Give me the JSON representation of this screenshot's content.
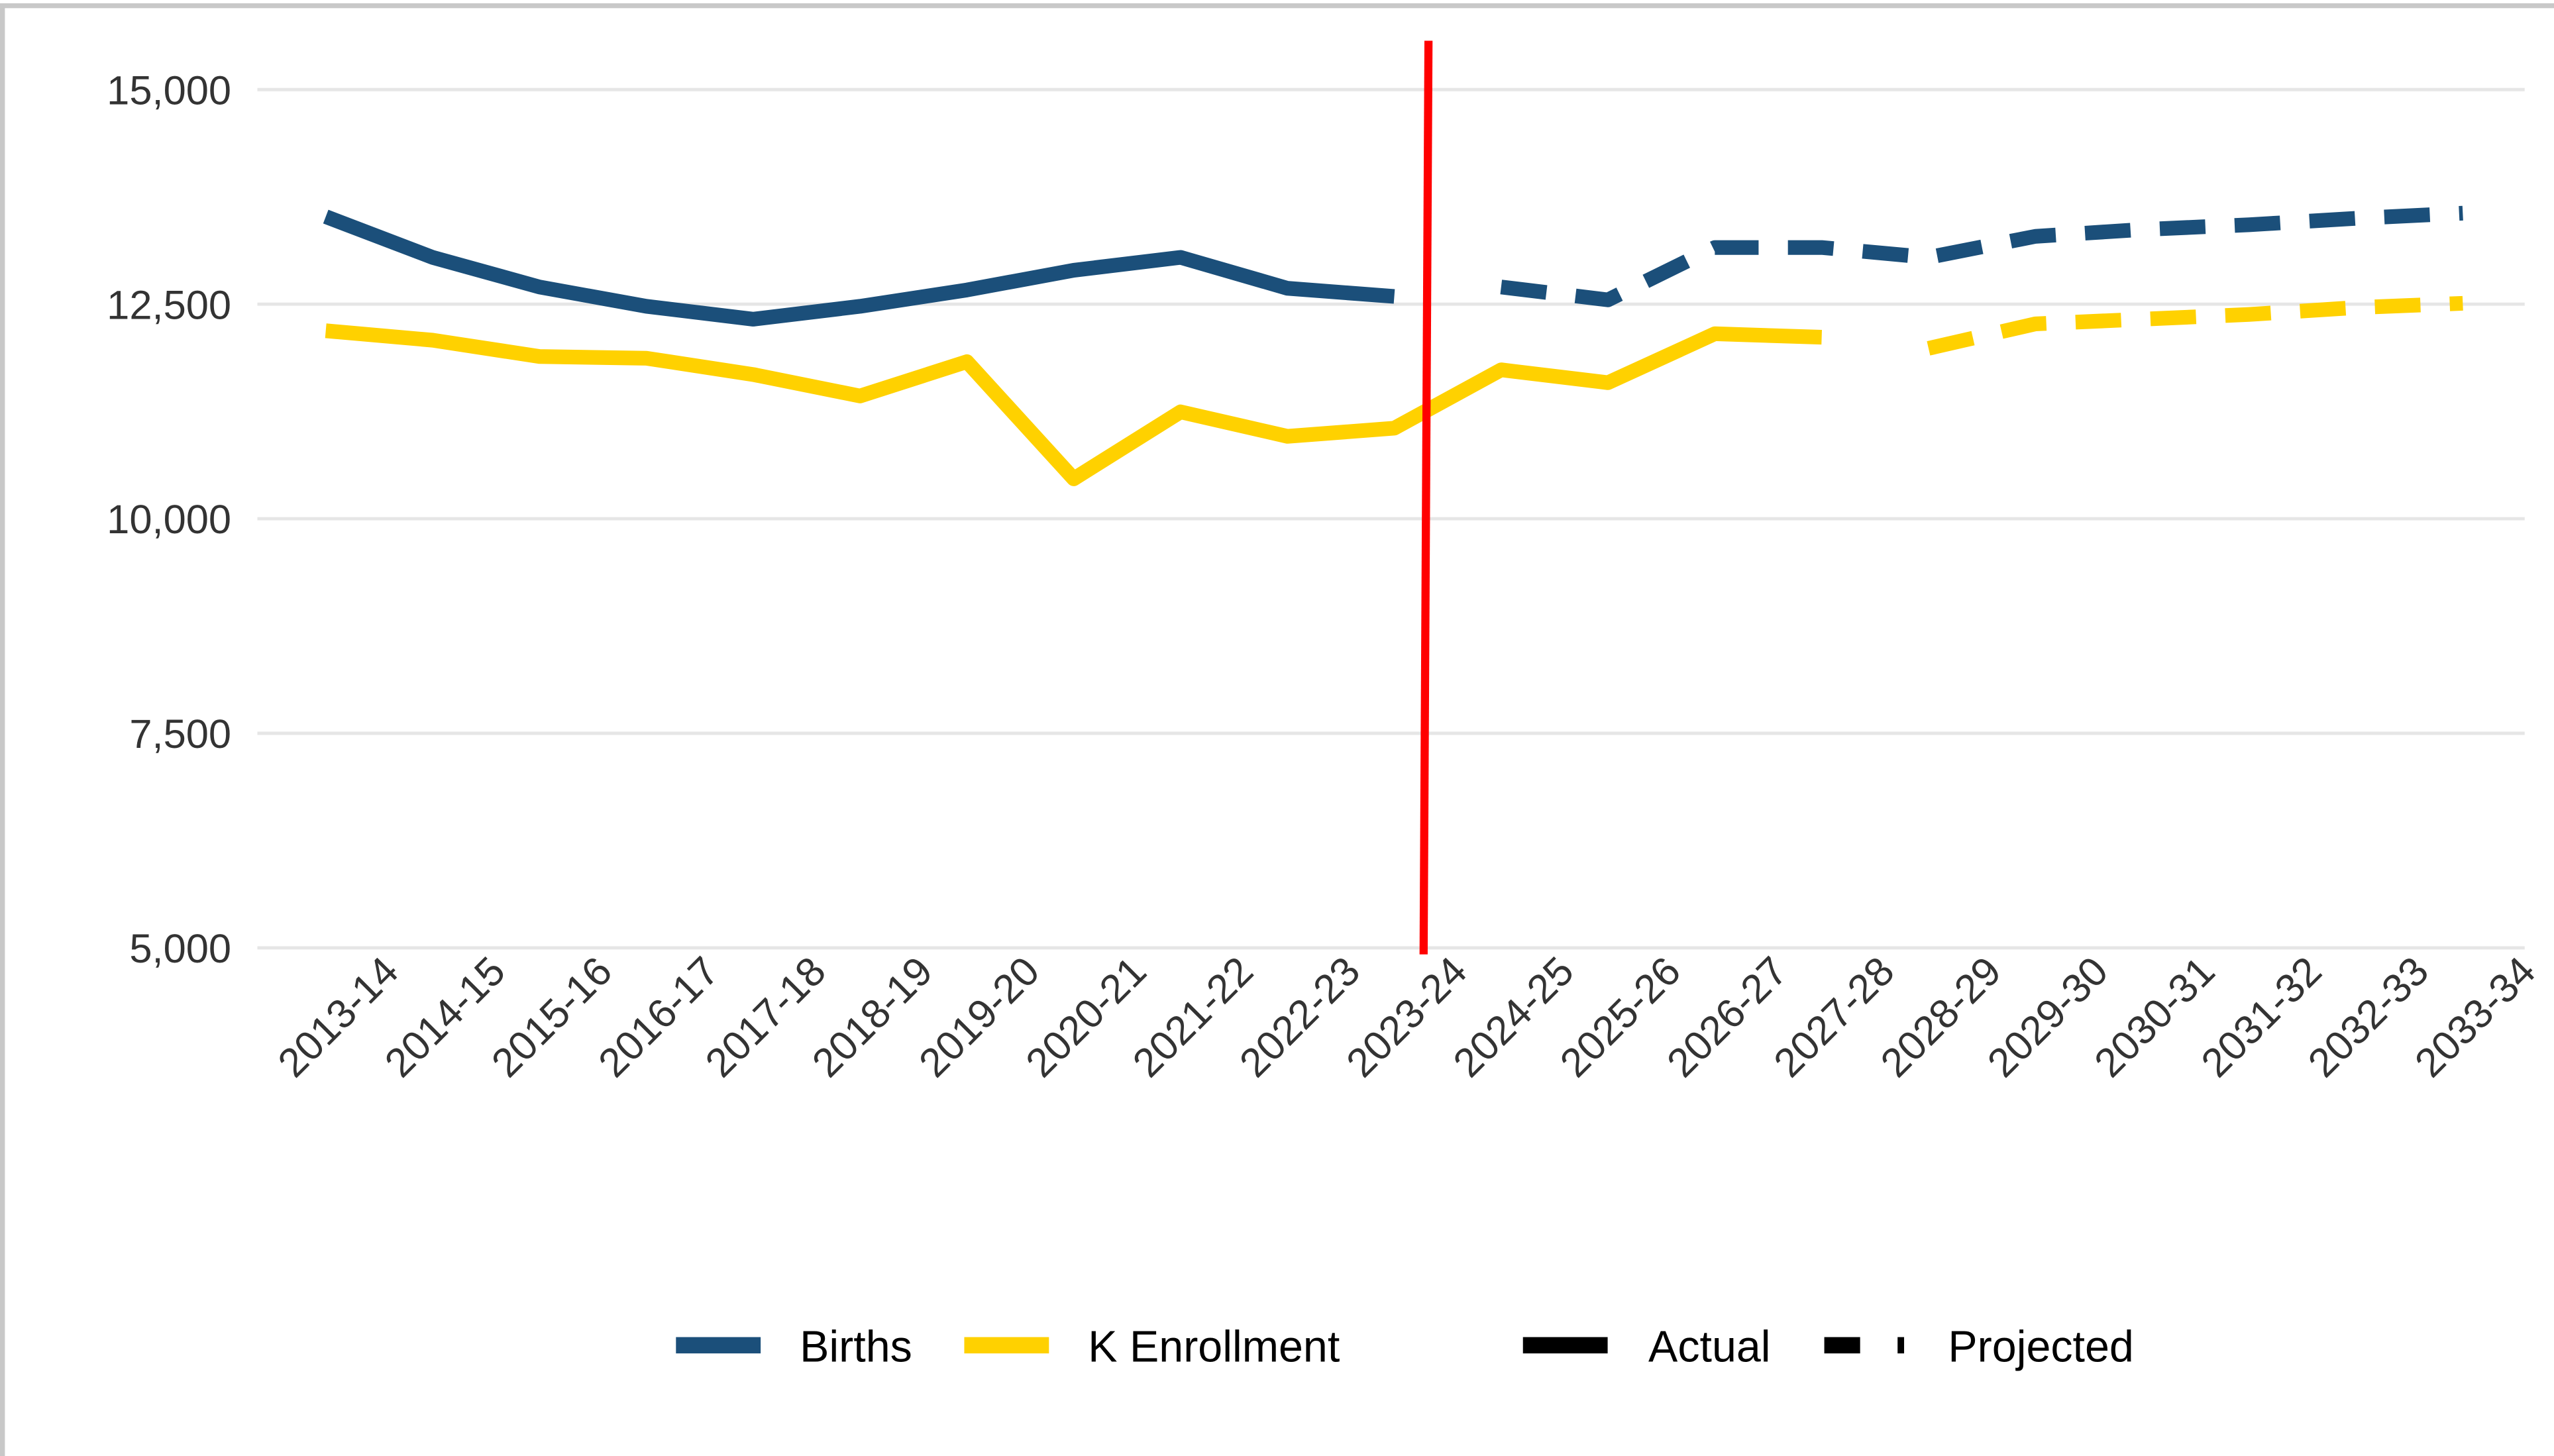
{
  "chart_data": {
    "type": "line",
    "categories": [
      "2013-14",
      "2014-15",
      "2015-16",
      "2016-17",
      "2017-18",
      "2018-19",
      "2019-20",
      "2020-21",
      "2021-22",
      "2022-23",
      "2023-24",
      "2024-25",
      "2025-26",
      "2026-27",
      "2027-28",
      "2028-29",
      "2029-30",
      "2030-31",
      "2031-32",
      "2032-33",
      "2033-34"
    ],
    "series": [
      {
        "name": "Births",
        "color": "#1b4f7a",
        "values": [
          13520,
          13045,
          12700,
          12475,
          12325,
          12475,
          12665,
          12895,
          13045,
          12685,
          12590,
          null,
          null,
          null,
          null,
          null,
          null,
          null,
          null,
          null,
          null
        ],
        "projected": [
          null,
          null,
          null,
          null,
          null,
          null,
          null,
          null,
          null,
          null,
          null,
          12700,
          12550,
          13160,
          13160,
          13045,
          13290,
          13370,
          13425,
          13500,
          13560
        ]
      },
      {
        "name": "K Enrollment",
        "color": "#ffd100",
        "values": [
          12190,
          12080,
          11890,
          11870,
          11680,
          11430,
          11830,
          10465,
          11245,
          10960,
          11055,
          11735,
          11585,
          12155,
          12115,
          null,
          null,
          null,
          null,
          null,
          null
        ],
        "projected": [
          null,
          null,
          null,
          null,
          null,
          null,
          null,
          null,
          null,
          null,
          null,
          null,
          null,
          null,
          null,
          11985,
          12270,
          12325,
          12380,
          12460,
          12510
        ]
      }
    ],
    "linetype_legend": [
      "Actual",
      "Projected"
    ],
    "ylim": [
      5000,
      15000
    ],
    "yticks": [
      {
        "value": 5000,
        "label": "5,000"
      },
      {
        "value": 7500,
        "label": "7,500"
      },
      {
        "value": 10000,
        "label": "10,000"
      },
      {
        "value": 12500,
        "label": "12,500"
      },
      {
        "value": 15000,
        "label": "15,000"
      }
    ],
    "grid": true
  }
}
